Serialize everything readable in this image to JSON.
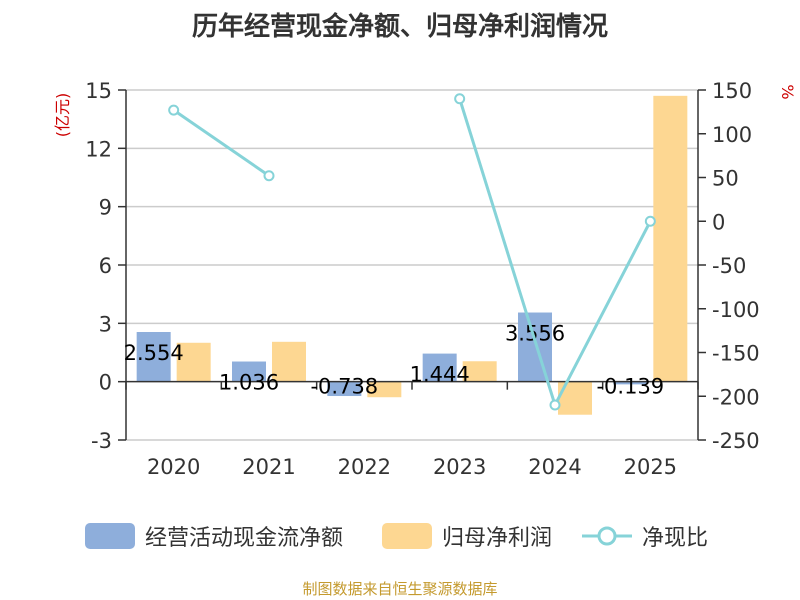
{
  "chart_data": {
    "type": "bar",
    "title": "历年经营现金净额、归母净利润情况",
    "categories": [
      "2020",
      "2021",
      "2022",
      "2023",
      "2024",
      "2025"
    ],
    "series": [
      {
        "name": "经营活动现金流净额",
        "type": "bar",
        "axis": "left",
        "color": "#8eaedb",
        "values": [
          2.554,
          1.036,
          -0.738,
          1.444,
          3.556,
          -0.139
        ]
      },
      {
        "name": "归母净利润",
        "type": "bar",
        "axis": "left",
        "color": "#fdd792",
        "values": [
          2.0,
          2.05,
          -0.8,
          1.05,
          -1.7,
          14.7
        ]
      },
      {
        "name": "净现比",
        "type": "line",
        "axis": "right",
        "color": "#86d3d8",
        "values": [
          127,
          52,
          null,
          140,
          -210,
          0
        ]
      }
    ],
    "data_labels": [
      "2.554",
      "1.036",
      "-0.738",
      "1.444",
      "3.556",
      "-0.139"
    ],
    "y_left": {
      "label": "(亿元)",
      "ylim": [
        -3,
        15
      ],
      "ticks": [
        "-3",
        "0",
        "3",
        "6",
        "9",
        "12",
        "15"
      ]
    },
    "y_right": {
      "label": "%",
      "ylim": [
        -250,
        150
      ],
      "ticks": [
        "-250",
        "-200",
        "-150",
        "-100",
        "-50",
        "0",
        "50",
        "100",
        "150"
      ]
    },
    "grid": true,
    "legend": "bottom",
    "source": "制图数据来自恒生聚源数据库"
  }
}
